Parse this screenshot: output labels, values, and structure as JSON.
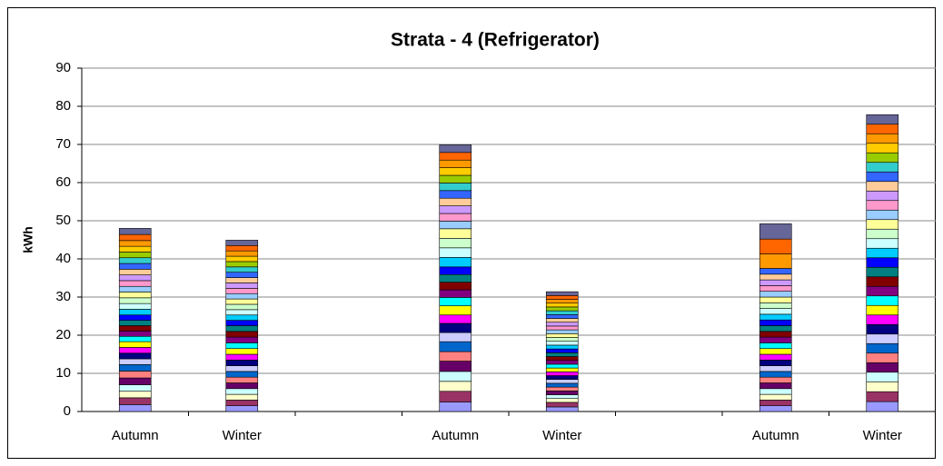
{
  "chart_data": {
    "type": "stacked_bar",
    "title": "Strata - 4 (Refrigerator)",
    "y_label": "kWh",
    "categories": [
      "Autumn",
      "Winter",
      null,
      "Autumn",
      "Winter",
      null,
      "Autumn",
      "Winter"
    ],
    "ylim": [
      0,
      90
    ],
    "yticks": [
      0,
      10,
      20,
      30,
      40,
      50,
      60,
      70,
      80,
      90
    ],
    "grid": true,
    "series": [
      {
        "color": "#9999ff",
        "values": [
          1.8,
          1.5,
          null,
          2.5,
          1.2,
          null,
          1.5,
          2.6
        ]
      },
      {
        "color": "#993366",
        "values": [
          1.8,
          1.5,
          null,
          2.8,
          1.2,
          null,
          1.5,
          2.6
        ]
      },
      {
        "color": "#ffffcc",
        "values": [
          1.7,
          1.5,
          null,
          2.6,
          1.0,
          null,
          1.5,
          2.6
        ]
      },
      {
        "color": "#ccffff",
        "values": [
          1.7,
          1.5,
          null,
          2.6,
          1.0,
          null,
          1.5,
          2.5
        ]
      },
      {
        "color": "#660066",
        "values": [
          1.8,
          1.5,
          null,
          2.7,
          1.0,
          null,
          1.5,
          2.5
        ]
      },
      {
        "color": "#ff8080",
        "values": [
          1.8,
          1.5,
          null,
          2.5,
          1.0,
          null,
          1.5,
          2.5
        ]
      },
      {
        "color": "#0066cc",
        "values": [
          1.7,
          1.5,
          null,
          2.6,
          1.0,
          null,
          1.5,
          2.5
        ]
      },
      {
        "color": "#ccccff",
        "values": [
          1.5,
          1.5,
          null,
          2.4,
          1.0,
          null,
          1.5,
          2.5
        ]
      },
      {
        "color": "#000080",
        "values": [
          1.5,
          1.5,
          null,
          2.4,
          1.0,
          null,
          1.5,
          2.5
        ]
      },
      {
        "color": "#ff00ff",
        "values": [
          1.5,
          1.5,
          null,
          2.2,
          1.0,
          null,
          1.5,
          2.5
        ]
      },
      {
        "color": "#ffff00",
        "values": [
          1.5,
          1.5,
          null,
          2.4,
          1.0,
          null,
          1.5,
          2.5
        ]
      },
      {
        "color": "#00ffff",
        "values": [
          1.4,
          1.5,
          null,
          2.2,
          1.0,
          null,
          1.5,
          2.5
        ]
      },
      {
        "color": "#800080",
        "values": [
          1.4,
          1.5,
          null,
          2.0,
          1.0,
          null,
          1.5,
          2.5
        ]
      },
      {
        "color": "#800000",
        "values": [
          1.4,
          1.5,
          null,
          2.0,
          1.0,
          null,
          1.5,
          2.5
        ]
      },
      {
        "color": "#008080",
        "values": [
          1.4,
          1.5,
          null,
          2.0,
          1.0,
          null,
          1.5,
          2.5
        ]
      },
      {
        "color": "#0000ff",
        "values": [
          1.4,
          1.4,
          null,
          2.0,
          1.0,
          null,
          1.5,
          2.5
        ]
      },
      {
        "color": "#00ccff",
        "values": [
          1.5,
          1.4,
          null,
          2.5,
          1.0,
          null,
          1.5,
          2.5
        ]
      },
      {
        "color": "#ccffff",
        "values": [
          1.5,
          1.4,
          null,
          2.5,
          1.0,
          null,
          1.5,
          2.5
        ]
      },
      {
        "color": "#ccffcc",
        "values": [
          1.5,
          1.4,
          null,
          2.5,
          1.0,
          null,
          1.5,
          2.5
        ]
      },
      {
        "color": "#ffff99",
        "values": [
          1.5,
          1.4,
          null,
          2.5,
          1.0,
          null,
          1.5,
          2.5
        ]
      },
      {
        "color": "#99ccff",
        "values": [
          1.5,
          1.4,
          null,
          2.0,
          1.0,
          null,
          1.5,
          2.5
        ]
      },
      {
        "color": "#ff99cc",
        "values": [
          1.5,
          1.4,
          null,
          2.0,
          1.0,
          null,
          1.5,
          2.5
        ]
      },
      {
        "color": "#cc99ff",
        "values": [
          1.5,
          1.4,
          null,
          2.0,
          1.0,
          null,
          1.5,
          2.5
        ]
      },
      {
        "color": "#ffcc99",
        "values": [
          1.5,
          1.4,
          null,
          2.0,
          1.0,
          null,
          1.5,
          2.5
        ]
      },
      {
        "color": "#3366ff",
        "values": [
          1.5,
          1.4,
          null,
          2.0,
          1.0,
          null,
          1.5,
          2.5
        ]
      },
      {
        "color": "#33cccc",
        "values": [
          1.5,
          1.4,
          null,
          2.0,
          1.0,
          null,
          null,
          2.5
        ]
      },
      {
        "color": "#99cc00",
        "values": [
          1.5,
          1.4,
          null,
          2.0,
          1.0,
          null,
          null,
          2.5
        ]
      },
      {
        "color": "#ffcc00",
        "values": [
          1.5,
          1.4,
          null,
          2.0,
          1.0,
          null,
          null,
          2.5
        ]
      },
      {
        "color": "#ff9900",
        "values": [
          1.5,
          1.4,
          null,
          2.0,
          1.0,
          null,
          3.8,
          2.5
        ]
      },
      {
        "color": "#ff6600",
        "values": [
          1.6,
          1.4,
          null,
          2.0,
          1.0,
          null,
          3.9,
          2.5
        ]
      },
      {
        "color": "#666699",
        "values": [
          1.6,
          1.4,
          null,
          2.0,
          1.0,
          null,
          4.0,
          2.5
        ]
      }
    ]
  }
}
